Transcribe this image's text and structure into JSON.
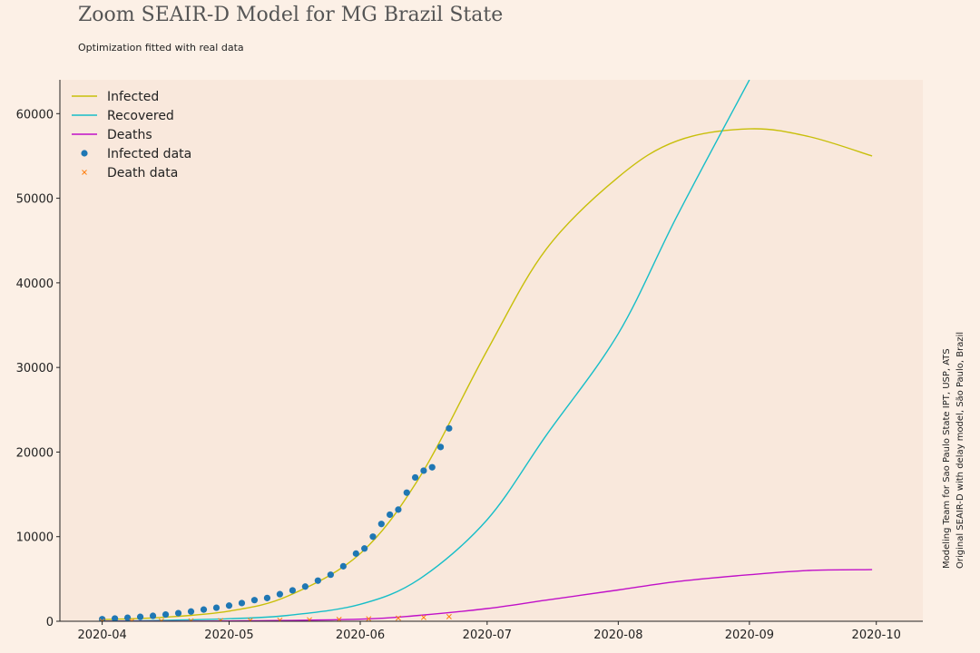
{
  "header": {
    "title": "Zoom SEAIR-D Model for MG Brazil State",
    "subtitle": "Optimization fitted with real data"
  },
  "side_note": {
    "line1": "Modeling Team for Sao Paulo State IPT, USP, ATS",
    "line2": "Original SEAIR-D with delay model, São Paulo, Brazil"
  },
  "colors": {
    "background": "#fcf0e6",
    "plot_background": "#f9e8dc",
    "infected": "#c8bf0a",
    "recovered": "#17bec8",
    "deaths": "#c010c8",
    "infected_data": "#1f77b4",
    "death_data": "#ff7f0e"
  },
  "chart_data": {
    "type": "line",
    "title": "Zoom SEAIR-D Model for MG Brazil State",
    "subtitle": "Optimization fitted with real data",
    "xlabel": "",
    "ylabel": "",
    "x_axis": "date",
    "xlim": [
      "2020-03-22",
      "2020-10-12"
    ],
    "ylim": [
      0,
      64000
    ],
    "x_ticks": [
      "2020-04",
      "2020-05",
      "2020-06",
      "2020-07",
      "2020-08",
      "2020-09",
      "2020-10"
    ],
    "y_ticks": [
      0,
      10000,
      20000,
      30000,
      40000,
      50000,
      60000
    ],
    "grid": false,
    "legend_position": "top-left",
    "series": [
      {
        "name": "Infected",
        "kind": "line",
        "color": "#c8bf0a",
        "x": [
          "2020-04-01",
          "2020-04-15",
          "2020-05-01",
          "2020-05-15",
          "2020-06-01",
          "2020-06-15",
          "2020-07-01",
          "2020-07-15",
          "2020-08-01",
          "2020-08-15",
          "2020-09-01",
          "2020-09-15",
          "2020-09-30"
        ],
        "y": [
          200,
          450,
          1200,
          3000,
          8000,
          17000,
          32000,
          44000,
          52500,
          56800,
          58200,
          57300,
          55000
        ]
      },
      {
        "name": "Recovered",
        "kind": "line",
        "color": "#17bec8",
        "x": [
          "2020-04-01",
          "2020-04-15",
          "2020-05-01",
          "2020-05-15",
          "2020-06-01",
          "2020-06-15",
          "2020-07-01",
          "2020-07-15",
          "2020-08-01",
          "2020-08-15",
          "2020-09-01"
        ],
        "y": [
          0,
          100,
          300,
          700,
          2000,
          5000,
          12000,
          22000,
          34000,
          48000,
          64000
        ]
      },
      {
        "name": "Deaths",
        "kind": "line",
        "color": "#c010c8",
        "x": [
          "2020-04-01",
          "2020-05-01",
          "2020-06-01",
          "2020-06-15",
          "2020-07-01",
          "2020-07-15",
          "2020-08-01",
          "2020-08-15",
          "2020-09-01",
          "2020-09-15",
          "2020-09-30"
        ],
        "y": [
          5,
          30,
          250,
          700,
          1500,
          2500,
          3700,
          4700,
          5500,
          6000,
          6100
        ]
      },
      {
        "name": "Infected data",
        "kind": "scatter",
        "marker": "circle",
        "color": "#1f77b4",
        "x": [
          "2020-04-01",
          "2020-04-04",
          "2020-04-07",
          "2020-04-10",
          "2020-04-13",
          "2020-04-16",
          "2020-04-19",
          "2020-04-22",
          "2020-04-25",
          "2020-04-28",
          "2020-05-01",
          "2020-05-04",
          "2020-05-07",
          "2020-05-10",
          "2020-05-13",
          "2020-05-16",
          "2020-05-19",
          "2020-05-22",
          "2020-05-25",
          "2020-05-28",
          "2020-05-31",
          "2020-06-02",
          "2020-06-04",
          "2020-06-06",
          "2020-06-08",
          "2020-06-10",
          "2020-06-12",
          "2020-06-14",
          "2020-06-16",
          "2020-06-18",
          "2020-06-20",
          "2020-06-22"
        ],
        "y": [
          250,
          330,
          420,
          520,
          640,
          800,
          960,
          1150,
          1380,
          1600,
          1850,
          2150,
          2500,
          2750,
          3200,
          3650,
          4100,
          4800,
          5500,
          6500,
          8000,
          8600,
          10000,
          11500,
          12600,
          13200,
          15200,
          17000,
          17800,
          18200,
          20600,
          22800
        ]
      },
      {
        "name": "Death data",
        "kind": "scatter",
        "marker": "x",
        "color": "#ff7f0e",
        "x": [
          "2020-04-01",
          "2020-04-08",
          "2020-04-15",
          "2020-04-22",
          "2020-04-29",
          "2020-05-06",
          "2020-05-13",
          "2020-05-20",
          "2020-05-27",
          "2020-06-03",
          "2020-06-10",
          "2020-06-16",
          "2020-06-22"
        ],
        "y": [
          10,
          20,
          30,
          45,
          70,
          100,
          130,
          170,
          220,
          290,
          370,
          450,
          550
        ]
      }
    ]
  }
}
